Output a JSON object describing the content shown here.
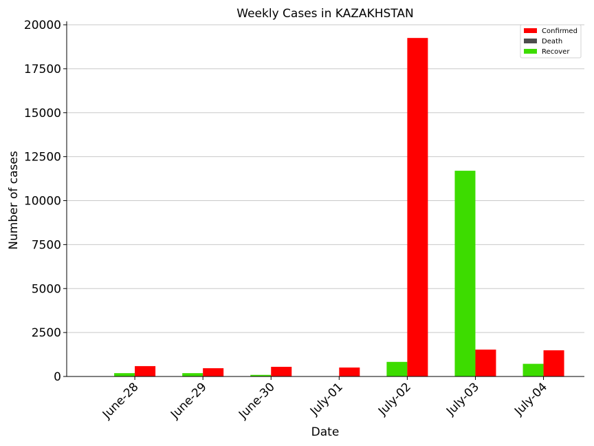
{
  "chart_data": {
    "type": "bar",
    "title": "Weekly Cases in KAZAKHSTAN",
    "xlabel": "Date",
    "ylabel": "Number of cases",
    "categories": [
      "June-28",
      "June-29",
      "June-30",
      "July-01",
      "July-02",
      "July-03",
      "July-04"
    ],
    "series": [
      {
        "name": "Confirmed",
        "color": "#ff0000",
        "values": [
          590,
          470,
          550,
          510,
          19250,
          1530,
          1490
        ]
      },
      {
        "name": "Death",
        "color": "#4d4d4d",
        "values": [
          0,
          0,
          0,
          0,
          0,
          0,
          0
        ]
      },
      {
        "name": "Recover",
        "color": "#3ddc00",
        "values": [
          190,
          190,
          90,
          0,
          830,
          11700,
          720
        ]
      }
    ],
    "ylim": [
      0,
      20000
    ],
    "yticks": [
      0,
      2500,
      5000,
      7500,
      10000,
      12500,
      15000,
      17500,
      20000
    ],
    "grid": "horizontal",
    "legend_position": "top-right"
  }
}
